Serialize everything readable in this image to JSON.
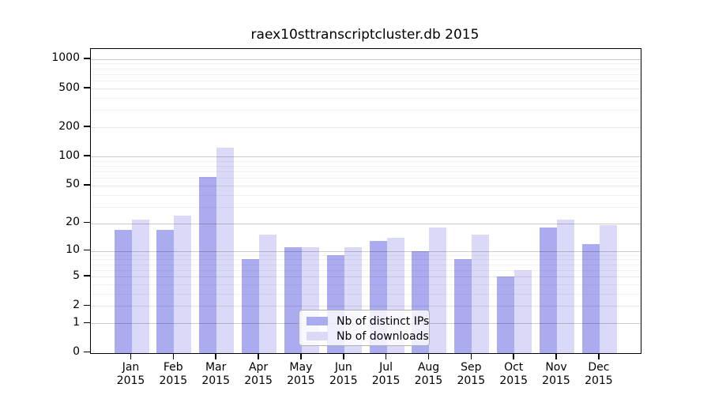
{
  "chart_data": {
    "type": "bar",
    "title": "raex10sttranscriptcluster.db 2015",
    "categories": [
      "Jan 2015",
      "Feb 2015",
      "Mar 2015",
      "Apr 2015",
      "May 2015",
      "Jun 2015",
      "Jul 2015",
      "Aug 2015",
      "Sep 2015",
      "Oct 2015",
      "Nov 2015",
      "Dec 2015"
    ],
    "months": [
      "Jan",
      "Feb",
      "Mar",
      "Apr",
      "May",
      "Jun",
      "Jul",
      "Aug",
      "Sep",
      "Oct",
      "Nov",
      "Dec"
    ],
    "year": "2015",
    "series": [
      {
        "name": "Nb of distinct IPs",
        "color": "#abacf0",
        "values": [
          17,
          17,
          61,
          8,
          11,
          9,
          13,
          10,
          8,
          5,
          18,
          12
        ]
      },
      {
        "name": "Nb of downloads",
        "color": "#dadaf8",
        "values": [
          22,
          24,
          123,
          15,
          11,
          11,
          14,
          18,
          15,
          6,
          22,
          19
        ]
      }
    ],
    "yscale": "log10(value+1)",
    "yticks": [
      0,
      1,
      2,
      5,
      10,
      20,
      50,
      100,
      200,
      500,
      1000
    ],
    "yticks_strong_grid": [
      1,
      10,
      20,
      100,
      1000
    ],
    "yminor_gridlines": [
      3,
      4,
      6,
      7,
      8,
      9,
      30,
      40,
      60,
      70,
      80,
      90,
      300,
      400,
      600,
      700,
      800,
      900
    ],
    "ylim": [
      0,
      1280
    ],
    "grid": true,
    "legend_position": "inside-bottom-center",
    "axis_color": "#000000",
    "background_color": "#ffffff"
  }
}
